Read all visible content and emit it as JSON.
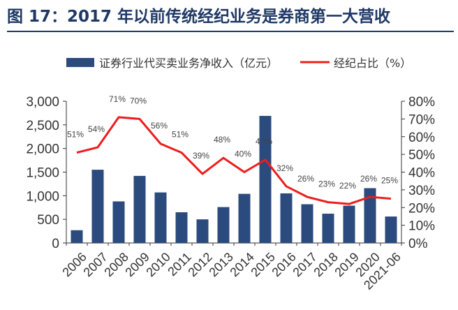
{
  "title": "图 17：2017 年以前传统经纪业务是券商第一大营收",
  "colors": {
    "bar": "#2b4a7e",
    "line": "#ee1c1c",
    "title": "#1f3864",
    "axis": "#333333"
  },
  "chart_data": {
    "type": "bar+line",
    "categories": [
      "2006",
      "2007",
      "2008",
      "2009",
      "2010",
      "2011",
      "2012",
      "2013",
      "2014",
      "2015",
      "2016",
      "2017",
      "2018",
      "2019",
      "2020",
      "2021-06"
    ],
    "series": [
      {
        "name": "证券行业代买卖业务净收入（亿元）",
        "type": "bar",
        "axis": "left",
        "values": [
          270,
          1550,
          880,
          1420,
          1070,
          650,
          500,
          760,
          1040,
          2690,
          1050,
          820,
          620,
          790,
          1160,
          560
        ]
      },
      {
        "name": "经纪占比（%）",
        "type": "line",
        "axis": "right",
        "values": [
          51,
          54,
          71,
          70,
          56,
          51,
          39,
          48,
          40,
          47,
          32,
          26,
          23,
          22,
          26,
          25
        ],
        "labels": [
          "51%",
          "54%",
          "71%",
          "70%",
          "56%",
          "51%",
          "39%",
          "48%",
          "40%",
          "47%",
          "32%",
          "26%",
          "23%",
          "22%",
          "26%",
          "25%"
        ]
      }
    ],
    "y_left": {
      "min": 0,
      "max": 3000,
      "ticks": [
        "0",
        "500",
        "1,000",
        "1,500",
        "2,000",
        "2,500",
        "3,000"
      ]
    },
    "y_right": {
      "min": 0,
      "max": 80,
      "ticks": [
        "0%",
        "10%",
        "20%",
        "30%",
        "40%",
        "50%",
        "60%",
        "70%",
        "80%"
      ]
    },
    "legend": {
      "position": "top"
    },
    "grid": false
  }
}
